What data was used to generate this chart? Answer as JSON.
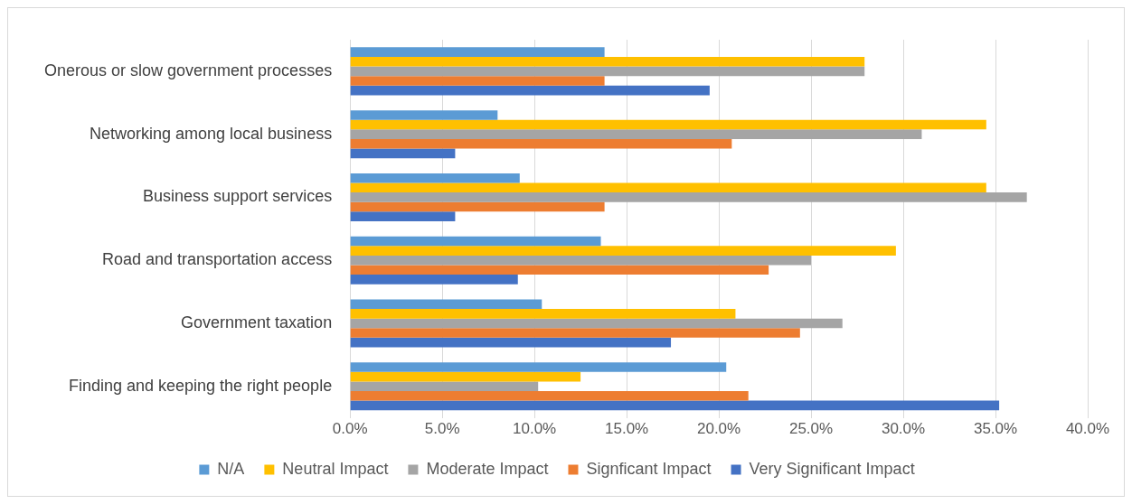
{
  "chart_data": {
    "type": "bar",
    "orientation": "horizontal",
    "categories": [
      "Onerous or slow government processes",
      "Networking among local business",
      "Business support services",
      "Road and transportation access",
      "Government taxation",
      "Finding and keeping the right people"
    ],
    "series": [
      {
        "name": "N/A",
        "color": "#5b9bd5",
        "values": [
          13.8,
          8.0,
          9.2,
          13.6,
          10.4,
          20.4
        ]
      },
      {
        "name": "Neutral Impact",
        "color": "#ffc000",
        "values": [
          27.9,
          34.5,
          34.5,
          29.6,
          20.9,
          12.5
        ]
      },
      {
        "name": "Moderate Impact",
        "color": "#a5a5a5",
        "values": [
          27.9,
          31.0,
          36.7,
          25.0,
          26.7,
          10.2
        ]
      },
      {
        "name": "Signficant Impact",
        "color": "#ed7d31",
        "values": [
          13.8,
          20.7,
          13.8,
          22.7,
          24.4,
          21.6
        ]
      },
      {
        "name": "Very Significant Impact",
        "color": "#4472c4",
        "values": [
          19.5,
          5.7,
          5.7,
          9.1,
          17.4,
          35.2
        ]
      }
    ],
    "xlim": [
      0,
      40
    ],
    "xticks": [
      {
        "value": 0,
        "label": "0.0%"
      },
      {
        "value": 5,
        "label": "5.0%"
      },
      {
        "value": 10,
        "label": "10.0%"
      },
      {
        "value": 15,
        "label": "15.0%"
      },
      {
        "value": 20,
        "label": "20.0%"
      },
      {
        "value": 25,
        "label": "25.0%"
      },
      {
        "value": 30,
        "label": "30.0%"
      },
      {
        "value": 35,
        "label": "35.0%"
      },
      {
        "value": 40,
        "label": "40.0%"
      }
    ],
    "grid": "x",
    "legend": "bottom"
  }
}
